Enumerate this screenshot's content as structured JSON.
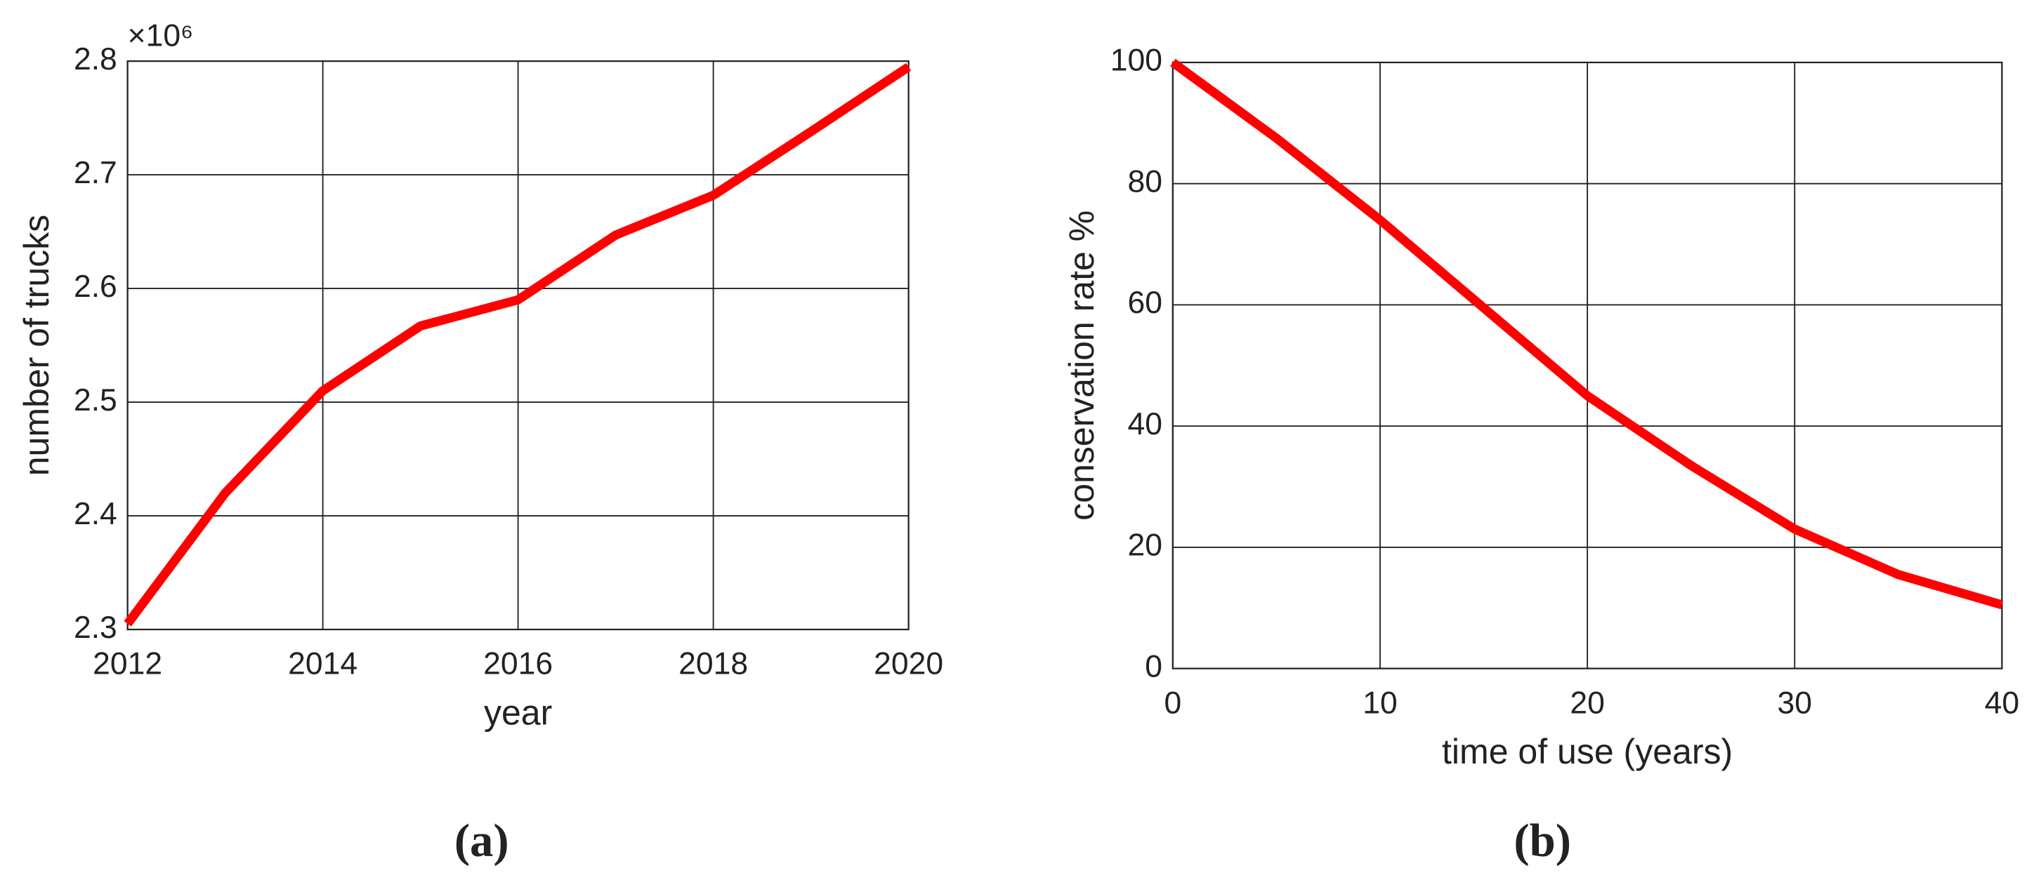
{
  "chart_data": [
    {
      "type": "line",
      "x": [
        2012,
        2013,
        2014,
        2015,
        2016,
        2017,
        2018,
        2019,
        2020
      ],
      "values": [
        2.305,
        2.42,
        2.51,
        2.567,
        2.59,
        2.647,
        2.682,
        2.738,
        2.795
      ],
      "color": "#ff0000",
      "xlim": [
        2012,
        2020
      ],
      "xticks": [
        2012,
        2014,
        2016,
        2018,
        2020
      ],
      "ylim": [
        2.3,
        2.8
      ],
      "yticks": [
        2.3,
        2.4,
        2.5,
        2.6,
        2.7,
        2.8
      ],
      "grid": true,
      "exponent_label": "×10⁶",
      "xlabel": "year",
      "ylabel": "number of trucks",
      "panel_label": "(a)"
    },
    {
      "type": "line",
      "x": [
        0,
        5,
        10,
        15,
        20,
        25,
        30,
        35,
        40
      ],
      "values": [
        100,
        87.5,
        74,
        59.5,
        45,
        33.5,
        23,
        15.5,
        10.5
      ],
      "color": "#ff0000",
      "xlim": [
        0,
        40
      ],
      "xticks": [
        0,
        10,
        20,
        30,
        40
      ],
      "ylim": [
        0,
        100
      ],
      "yticks": [
        0,
        20,
        40,
        60,
        80,
        100
      ],
      "grid": true,
      "xlabel": "time of use (years)",
      "ylabel": "conservation rate %",
      "panel_label": "(b)"
    }
  ]
}
